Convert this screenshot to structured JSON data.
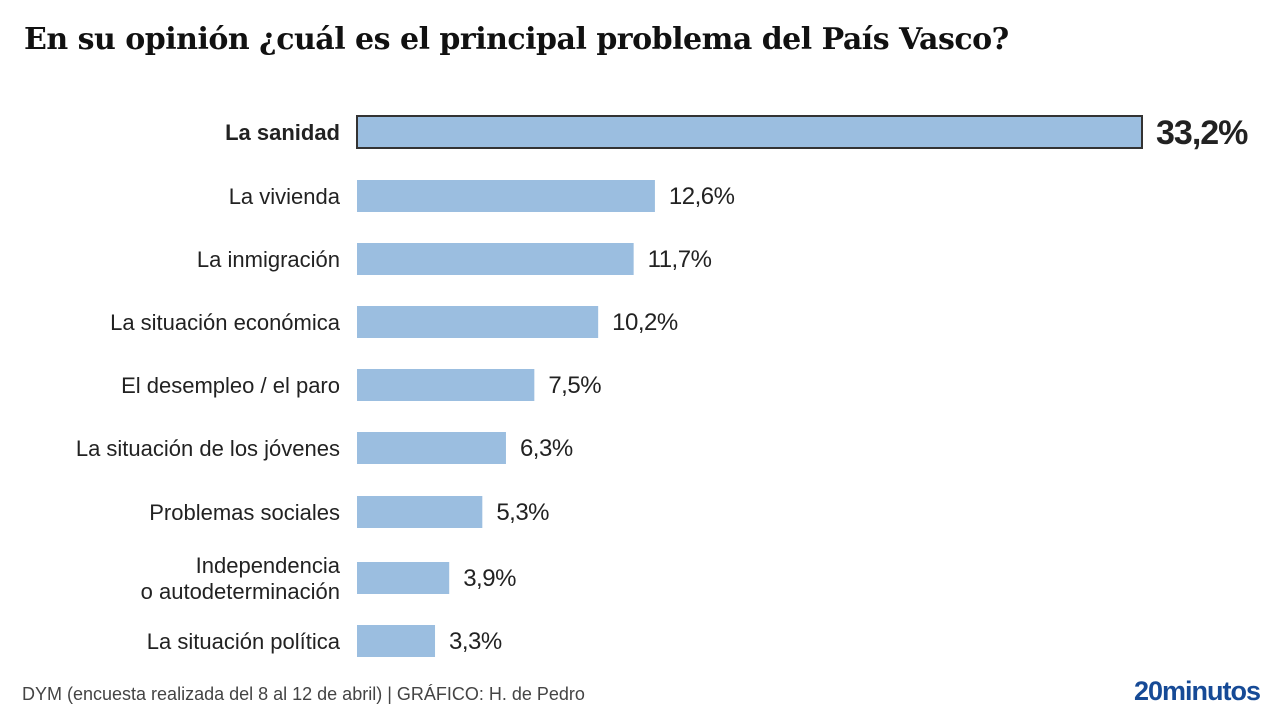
{
  "chart_data": {
    "type": "bar",
    "orientation": "horizontal",
    "title": "En su opinión ¿cuál es el principal problema del País Vasco?",
    "categories": [
      [
        "La sanidad"
      ],
      [
        "La vivienda"
      ],
      [
        "La inmigración"
      ],
      [
        "La situación económica"
      ],
      [
        "El desempleo / el paro"
      ],
      [
        "La situación de los jóvenes"
      ],
      [
        "Problemas sociales"
      ],
      [
        "Independencia",
        "o autodeterminación"
      ],
      [
        "La situación política"
      ]
    ],
    "values": [
      33.2,
      12.6,
      11.7,
      10.2,
      7.5,
      6.3,
      5.3,
      3.9,
      3.3
    ],
    "labels": [
      "33,2%",
      "12,6%",
      "11,7%",
      "10,2%",
      "7,5%",
      "6,3%",
      "5,3%",
      "3,9%",
      "3,3%"
    ],
    "highlight_index": 0,
    "xlim": [
      0,
      33.2
    ],
    "bar_color": "#9bbee0",
    "highlight_stroke": "#333333"
  },
  "footer": {
    "source": "DYM (encuesta realizada del 8 al 12 de abril)  |  GRÁFICO: H. de Pedro",
    "logo": "20minutos"
  }
}
